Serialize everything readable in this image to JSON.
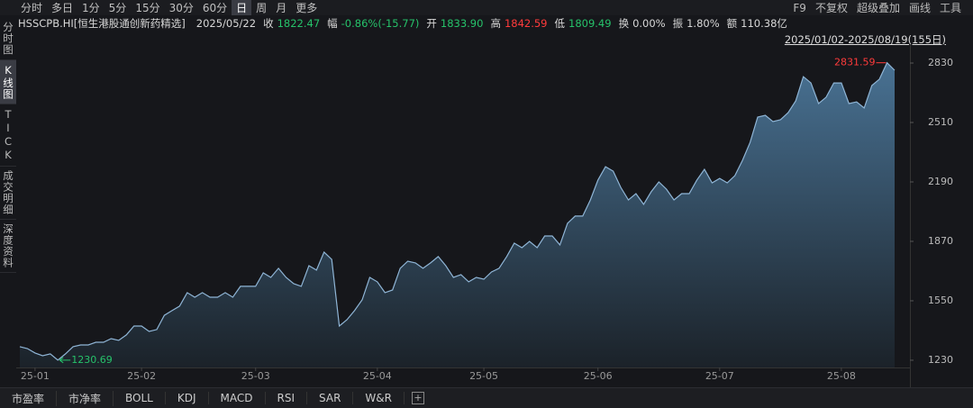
{
  "toolbar": {
    "periods": [
      "分时",
      "多日",
      "1分",
      "5分",
      "15分",
      "30分",
      "60分",
      "日",
      "周",
      "月",
      "更多"
    ],
    "tools": [
      "F9",
      "不复权",
      "超级叠加",
      "画线",
      "工具"
    ]
  },
  "info": {
    "symbol": "HSSCPB.HI[恒生港股通创新药精选]",
    "date": "2025/05/22",
    "fields": [
      {
        "label": "收",
        "value": "1822.47"
      },
      {
        "label": "幅",
        "value": "-0.86%(-15.77)"
      },
      {
        "label": "开",
        "value": "1833.90"
      },
      {
        "label": "高",
        "value": "1842.59"
      },
      {
        "label": "低",
        "value": "1809.49"
      },
      {
        "label": "换",
        "value": "0.00%"
      },
      {
        "label": "振",
        "value": "1.80%"
      },
      {
        "label": "额",
        "value": "110.38亿"
      }
    ]
  },
  "range": "2025/01/02-2025/08/19(155日)",
  "sidebar": [
    "分时图",
    "K线图",
    "TICK",
    "成交明细",
    "深度资料"
  ],
  "indicators": [
    "市盈率",
    "市净率",
    "BOLL",
    "KDJ",
    "MACD",
    "RSI",
    "SAR",
    "W&R"
  ],
  "chart_data": {
    "type": "area",
    "categories": [
      null,
      null,
      "25-01",
      null,
      null,
      null,
      null,
      null,
      null,
      null,
      null,
      null,
      null,
      null,
      null,
      null,
      "25-02",
      null,
      null,
      null,
      null,
      null,
      null,
      null,
      null,
      null,
      null,
      null,
      null,
      null,
      null,
      "25-03",
      null,
      null,
      null,
      null,
      null,
      null,
      null,
      null,
      null,
      null,
      null,
      null,
      null,
      null,
      null,
      "25-04",
      null,
      null,
      null,
      null,
      null,
      null,
      null,
      null,
      null,
      null,
      null,
      null,
      null,
      "25-05",
      null,
      null,
      null,
      null,
      null,
      null,
      null,
      null,
      null,
      null,
      null,
      null,
      null,
      null,
      "25-06",
      null,
      null,
      null,
      null,
      null,
      null,
      null,
      null,
      null,
      null,
      null,
      null,
      null,
      null,
      null,
      "25-07",
      null,
      null,
      null,
      null,
      null,
      null,
      null,
      null,
      null,
      null,
      null,
      null,
      null,
      null,
      null,
      "25-08",
      null,
      null,
      null,
      null,
      null,
      null,
      null
    ],
    "values": [
      1303,
      1293,
      1269,
      1254,
      1264,
      1230.69,
      1264,
      1303,
      1312,
      1312,
      1327,
      1327,
      1346,
      1337,
      1366,
      1414,
      1414,
      1385,
      1395,
      1472,
      1497,
      1521,
      1594,
      1569,
      1594,
      1569,
      1569,
      1594,
      1569,
      1628,
      1628,
      1628,
      1700,
      1676,
      1725,
      1676,
      1642,
      1628,
      1739,
      1715,
      1812,
      1773,
      1414,
      1448,
      1497,
      1555,
      1676,
      1652,
      1594,
      1608,
      1725,
      1763,
      1754,
      1725,
      1754,
      1788,
      1739,
      1676,
      1691,
      1652,
      1676,
      1666,
      1705,
      1725,
      1788,
      1860,
      1836,
      1870,
      1836,
      1899,
      1899,
      1851,
      1967,
      2006,
      2006,
      2093,
      2200,
      2272,
      2248,
      2161,
      2093,
      2127,
      2069,
      2137,
      2190,
      2151,
      2093,
      2127,
      2127,
      2200,
      2258,
      2185,
      2209,
      2185,
      2224,
      2306,
      2403,
      2539,
      2549,
      2515,
      2525,
      2563,
      2626,
      2757,
      2723,
      2612,
      2646,
      2723,
      2723,
      2612,
      2621,
      2588,
      2709,
      2743,
      2831.59,
      2791
    ],
    "color": "#8fb5d6",
    "ylim": [
      1191,
      2927
    ],
    "yticks": [
      1230,
      1550,
      1870,
      2190,
      2510,
      2830
    ],
    "grid": false
  }
}
